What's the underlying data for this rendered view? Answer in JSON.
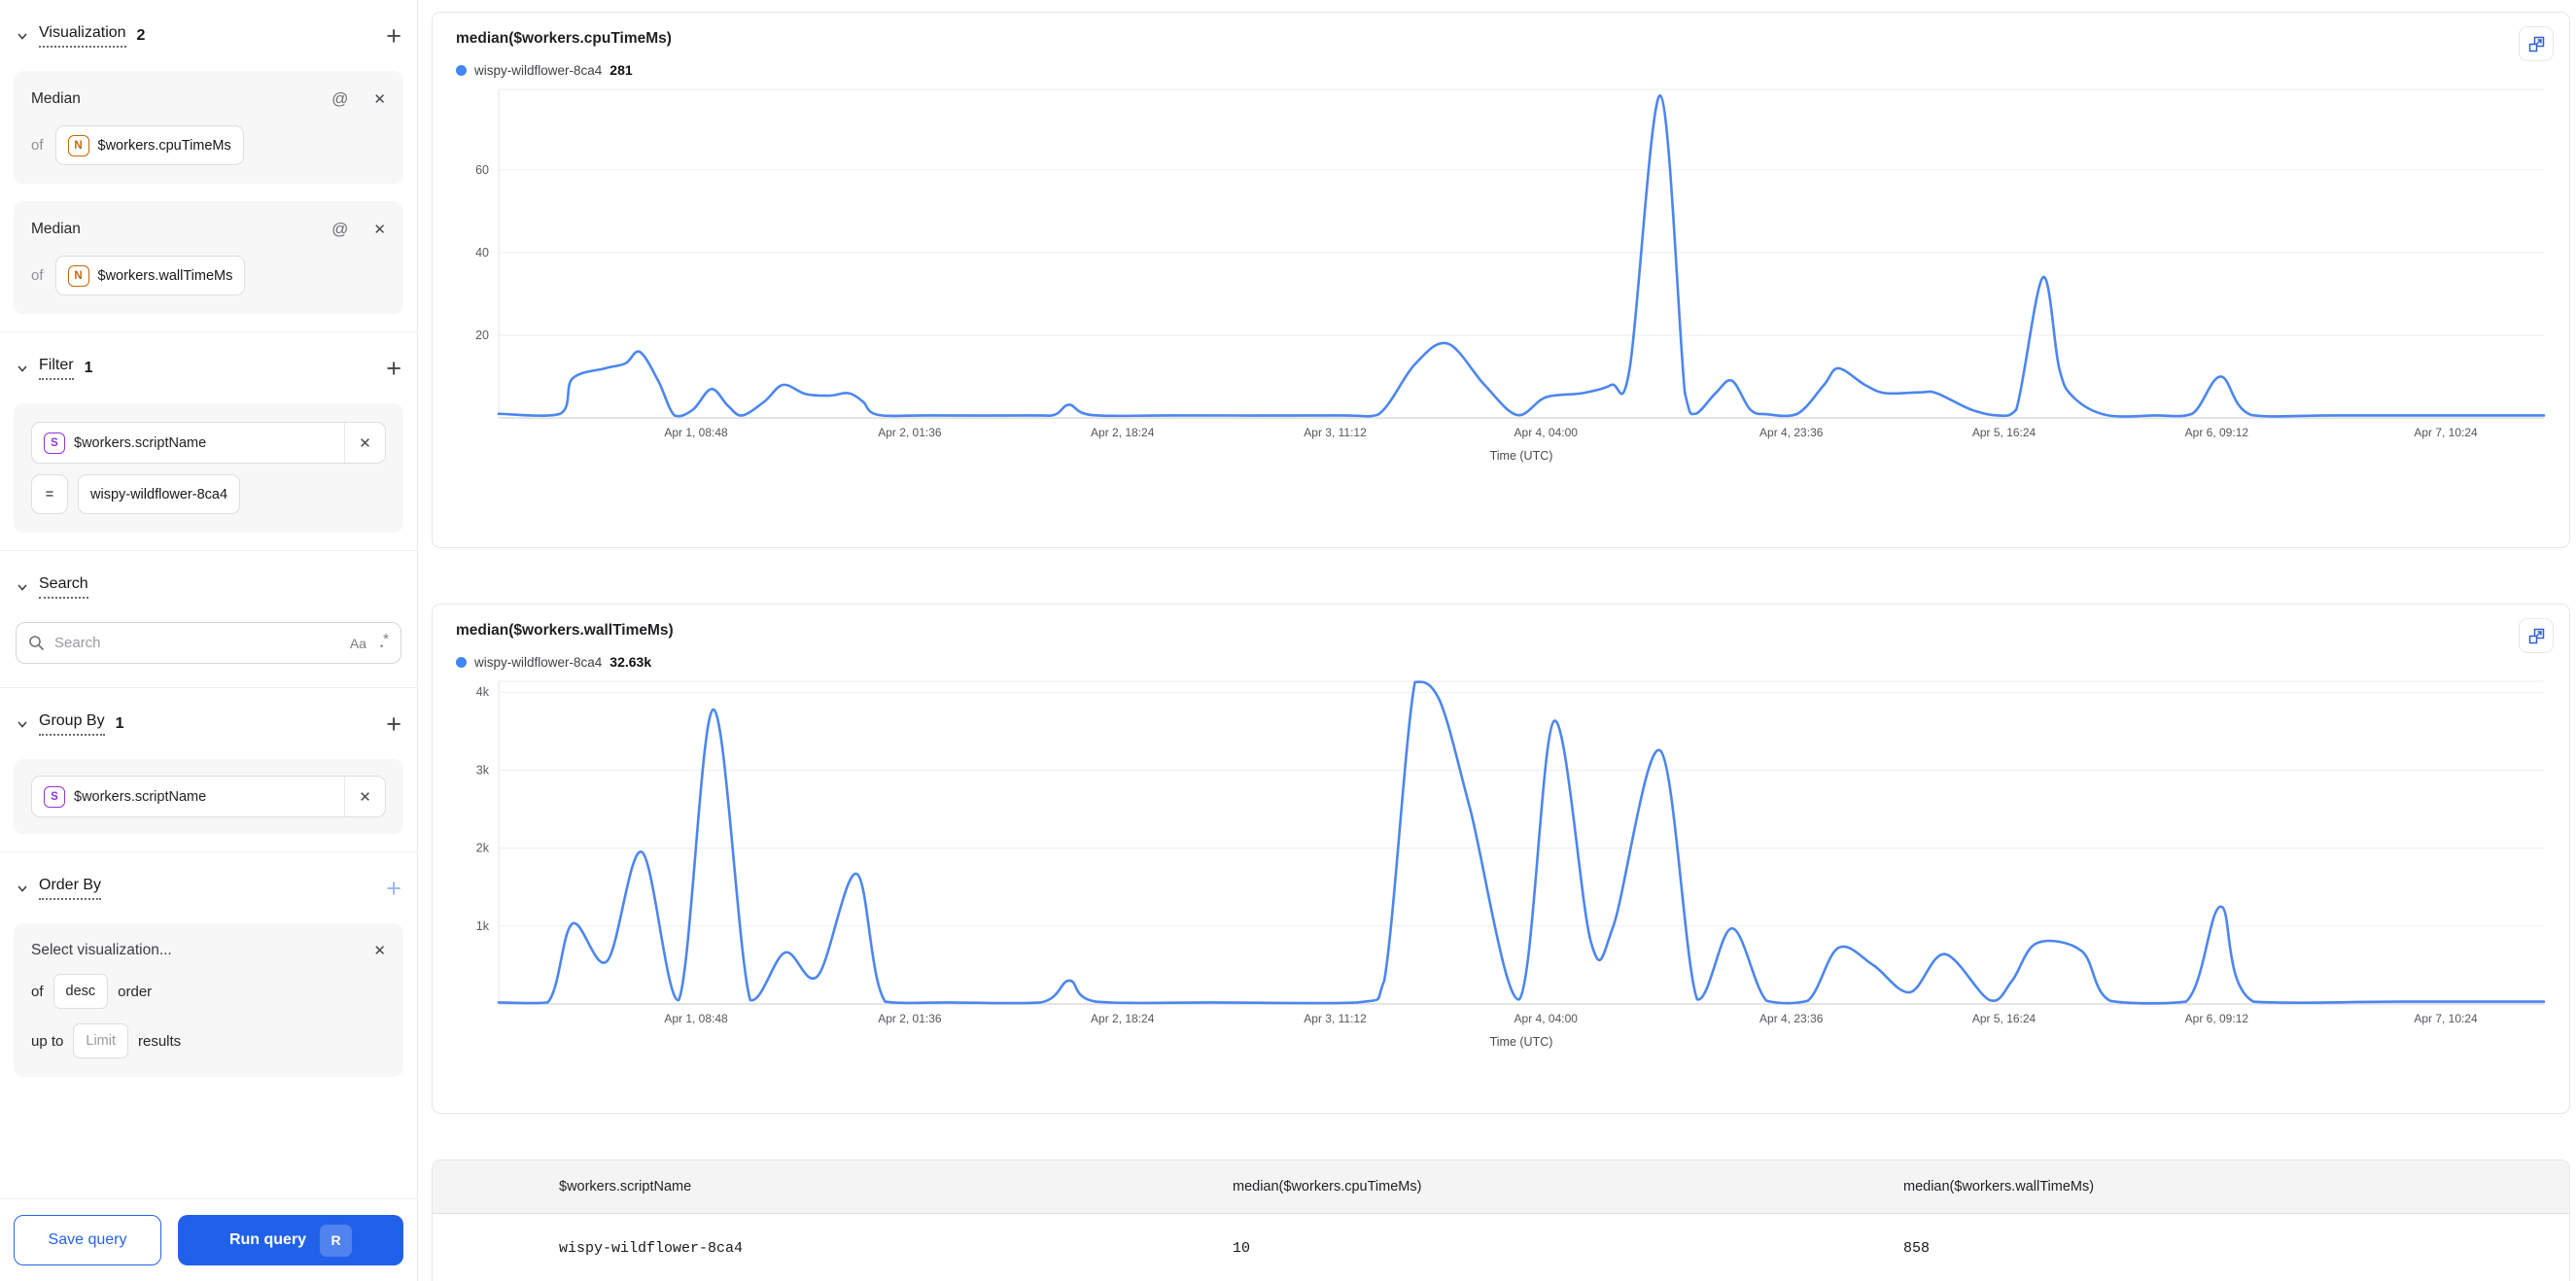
{
  "colors": {
    "accent_blue": "#2161e9",
    "line_blue": "#4c86ef",
    "legend_dot_blue": "#4285f4",
    "badge_number_orange": "#c0680c",
    "badge_string_purple": "#9333d4",
    "card_bg_gray": "#f7f7f8"
  },
  "sidebar": {
    "visualization": {
      "title": "Visualization",
      "count": "2",
      "add_label": "+",
      "of_label": "of",
      "items": [
        {
          "agg": "Median",
          "field": "$workers.cpuTimeMs",
          "type_badge": "N"
        },
        {
          "agg": "Median",
          "field": "$workers.wallTimeMs",
          "type_badge": "N"
        }
      ]
    },
    "filter": {
      "title": "Filter",
      "count": "1",
      "add_label": "+",
      "field": "$workers.scriptName",
      "type_badge": "S",
      "operator": "=",
      "value": "wispy-wildflower-8ca4"
    },
    "search": {
      "title": "Search",
      "placeholder": "Search",
      "case_icon": "Aa",
      "regex_icon": ".*"
    },
    "group_by": {
      "title": "Group By",
      "count": "1",
      "add_label": "+",
      "field": "$workers.scriptName",
      "type_badge": "S"
    },
    "order_by": {
      "title": "Order By",
      "add_label": "+",
      "placeholder": "Select visualization...",
      "of_label": "of",
      "direction": "desc",
      "order_label": "order",
      "up_to_label": "up to",
      "limit_placeholder": "Limit",
      "results_label": "results"
    },
    "buttons": {
      "save": "Save query",
      "run": "Run query",
      "run_shortcut": "R"
    }
  },
  "chart_data": [
    {
      "type": "line",
      "title": "median($workers.cpuTimeMs)",
      "series": "wispy-wildflower-8ca4",
      "latest_value": "281",
      "xlabel": "Time (UTC)",
      "ylim": [
        0,
        79.5
      ],
      "grid": true,
      "legend_position": "top-left",
      "y_ticks": [
        {
          "v": 20,
          "label": "20"
        },
        {
          "v": 40,
          "label": "40"
        },
        {
          "v": 60,
          "label": "60"
        }
      ],
      "x_ticks": [
        {
          "f": 0.0965,
          "label": "Apr 1, 08:48"
        },
        {
          "f": 0.201,
          "label": "Apr 2, 01:36"
        },
        {
          "f": 0.305,
          "label": "Apr 2, 18:24"
        },
        {
          "f": 0.409,
          "label": "Apr 3, 11:12"
        },
        {
          "f": 0.512,
          "label": "Apr 4, 04:00"
        },
        {
          "f": 0.632,
          "label": "Apr 4, 23:36"
        },
        {
          "f": 0.736,
          "label": "Apr 5, 16:24"
        },
        {
          "f": 0.84,
          "label": "Apr 6, 09:12"
        },
        {
          "f": 0.952,
          "label": "Apr 7, 10:24"
        }
      ],
      "points": [
        [
          0,
          1
        ],
        [
          0.03,
          1
        ],
        [
          0.036,
          9.5
        ],
        [
          0.052,
          12
        ],
        [
          0.062,
          13.2
        ],
        [
          0.069,
          16
        ],
        [
          0.078,
          9
        ],
        [
          0.086,
          0.6
        ],
        [
          0.095,
          2
        ],
        [
          0.104,
          7
        ],
        [
          0.112,
          3
        ],
        [
          0.119,
          0.6
        ],
        [
          0.13,
          4
        ],
        [
          0.139,
          8
        ],
        [
          0.15,
          5.8
        ],
        [
          0.162,
          5.4
        ],
        [
          0.171,
          6
        ],
        [
          0.178,
          4
        ],
        [
          0.185,
          0.8
        ],
        [
          0.21,
          0.6
        ],
        [
          0.26,
          0.6
        ],
        [
          0.272,
          0.8
        ],
        [
          0.279,
          3.2
        ],
        [
          0.29,
          0.7
        ],
        [
          0.33,
          0.6
        ],
        [
          0.41,
          0.6
        ],
        [
          0.43,
          0.8
        ],
        [
          0.448,
          13
        ],
        [
          0.464,
          18
        ],
        [
          0.482,
          8
        ],
        [
          0.498,
          0.7
        ],
        [
          0.512,
          5
        ],
        [
          0.53,
          6
        ],
        [
          0.544,
          8
        ],
        [
          0.553,
          12
        ],
        [
          0.568,
          78
        ],
        [
          0.58,
          6
        ],
        [
          0.585,
          1
        ],
        [
          0.595,
          6
        ],
        [
          0.603,
          9
        ],
        [
          0.612,
          2
        ],
        [
          0.62,
          0.9
        ],
        [
          0.635,
          1
        ],
        [
          0.648,
          8
        ],
        [
          0.655,
          12
        ],
        [
          0.668,
          8
        ],
        [
          0.678,
          6
        ],
        [
          0.695,
          6.2
        ],
        [
          0.703,
          6
        ],
        [
          0.72,
          2
        ],
        [
          0.733,
          0.6
        ],
        [
          0.742,
          2
        ],
        [
          0.755,
          34
        ],
        [
          0.763,
          12
        ],
        [
          0.77,
          5
        ],
        [
          0.786,
          0.7
        ],
        [
          0.81,
          0.6
        ],
        [
          0.828,
          1
        ],
        [
          0.842,
          10
        ],
        [
          0.857,
          0.7
        ],
        [
          0.9,
          0.6
        ],
        [
          1,
          0.6
        ]
      ]
    },
    {
      "type": "line",
      "title": "median($workers.wallTimeMs)",
      "series": "wispy-wildflower-8ca4",
      "latest_value": "32.63k",
      "xlabel": "Time (UTC)",
      "ylim": [
        0,
        4.14
      ],
      "grid": true,
      "legend_position": "top-left",
      "y_ticks": [
        {
          "v": 1,
          "label": "1k"
        },
        {
          "v": 2,
          "label": "2k"
        },
        {
          "v": 3,
          "label": "3k"
        },
        {
          "v": 4,
          "label": "4k"
        }
      ],
      "x_ticks": [
        {
          "f": 0.0965,
          "label": "Apr 1, 08:48"
        },
        {
          "f": 0.201,
          "label": "Apr 2, 01:36"
        },
        {
          "f": 0.305,
          "label": "Apr 2, 18:24"
        },
        {
          "f": 0.409,
          "label": "Apr 3, 11:12"
        },
        {
          "f": 0.512,
          "label": "Apr 4, 04:00"
        },
        {
          "f": 0.632,
          "label": "Apr 4, 23:36"
        },
        {
          "f": 0.736,
          "label": "Apr 5, 16:24"
        },
        {
          "f": 0.84,
          "label": "Apr 6, 09:12"
        },
        {
          "f": 0.952,
          "label": "Apr 7, 10:24"
        }
      ],
      "points": [
        [
          0,
          0.02
        ],
        [
          0.024,
          0.02
        ],
        [
          0.036,
          1.03
        ],
        [
          0.053,
          0.55
        ],
        [
          0.07,
          1.95
        ],
        [
          0.088,
          0.05
        ],
        [
          0.105,
          3.78
        ],
        [
          0.123,
          0.05
        ],
        [
          0.14,
          0.66
        ],
        [
          0.156,
          0.36
        ],
        [
          0.175,
          1.67
        ],
        [
          0.189,
          0.03
        ],
        [
          0.22,
          0.02
        ],
        [
          0.265,
          0.02
        ],
        [
          0.279,
          0.3
        ],
        [
          0.292,
          0.03
        ],
        [
          0.35,
          0.02
        ],
        [
          0.42,
          0.02
        ],
        [
          0.433,
          0.3
        ],
        [
          0.448,
          4.13
        ],
        [
          0.46,
          3.9
        ],
        [
          0.475,
          2.5
        ],
        [
          0.499,
          0.06
        ],
        [
          0.516,
          3.63
        ],
        [
          0.534,
          0.8
        ],
        [
          0.545,
          1.0
        ],
        [
          0.568,
          3.25
        ],
        [
          0.586,
          0.06
        ],
        [
          0.603,
          0.97
        ],
        [
          0.62,
          0.04
        ],
        [
          0.64,
          0.04
        ],
        [
          0.655,
          0.72
        ],
        [
          0.672,
          0.5
        ],
        [
          0.69,
          0.15
        ],
        [
          0.707,
          0.64
        ],
        [
          0.729,
          0.05
        ],
        [
          0.74,
          0.3
        ],
        [
          0.752,
          0.78
        ],
        [
          0.774,
          0.68
        ],
        [
          0.788,
          0.04
        ],
        [
          0.825,
          0.03
        ],
        [
          0.842,
          1.25
        ],
        [
          0.858,
          0.03
        ],
        [
          0.93,
          0.03
        ],
        [
          1,
          0.03
        ]
      ]
    }
  ],
  "table": {
    "columns": [
      "$workers.scriptName",
      "median($workers.cpuTimeMs)",
      "median($workers.wallTimeMs)"
    ],
    "rows": [
      {
        "script_name": "wispy-wildflower-8ca4",
        "cpu": "10",
        "wall": "858"
      }
    ]
  }
}
